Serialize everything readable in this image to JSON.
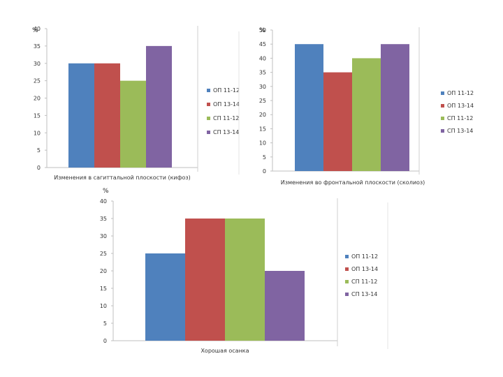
{
  "colors": [
    "#4f81bd",
    "#c0504d",
    "#9bbb59",
    "#8064a2"
  ],
  "chart_data": [
    {
      "type": "bar",
      "categories": [
        "ОП 11-12",
        "ОП 13-14",
        "СП 11-12",
        "СП 13-14"
      ],
      "values": [
        30,
        30,
        25,
        35
      ],
      "ylabel": "%",
      "xlabel": "Изменения в сагиттальной плоскости (кифоз)",
      "ylim": [
        0,
        40
      ],
      "yticks": [
        0,
        5,
        10,
        15,
        20,
        25,
        30,
        35,
        40
      ],
      "legend": "right"
    },
    {
      "type": "bar",
      "categories": [
        "ОП 11-12",
        "ОП 13-14",
        "СП 11-12",
        "СП 13-14"
      ],
      "values": [
        45,
        35,
        40,
        45
      ],
      "ylabel": "%",
      "xlabel": "Изменения во фронтальной плоскости (сколиоз)",
      "ylim": [
        0,
        50
      ],
      "yticks": [
        0,
        5,
        10,
        15,
        20,
        25,
        30,
        35,
        40,
        45,
        50
      ],
      "legend": "right"
    },
    {
      "type": "bar",
      "categories": [
        "ОП 11-12",
        "ОП 13-14",
        "СП 11-12",
        "СП 13-14"
      ],
      "values": [
        25,
        35,
        35,
        20
      ],
      "ylabel": "%",
      "xlabel": "Хорошая осанка",
      "ylim": [
        0,
        40
      ],
      "yticks": [
        0,
        5,
        10,
        15,
        20,
        25,
        30,
        35,
        40
      ],
      "legend": "right"
    }
  ]
}
